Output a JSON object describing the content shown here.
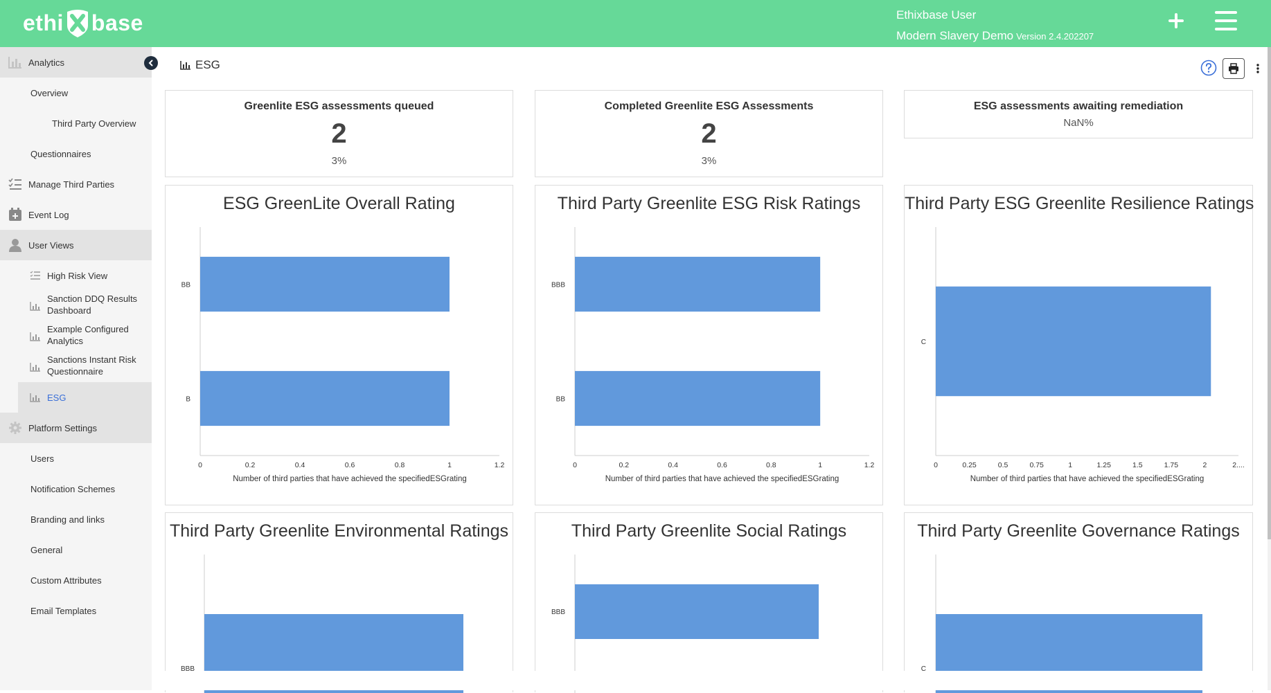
{
  "header": {
    "logo_left": "ethi",
    "logo_right": "base",
    "user_name": "Ethixbase User",
    "org_name": "Modern Slavery Demo",
    "version": "Version 2.4.202207",
    "plus_icon": "plus-icon",
    "menu_icon": "hamburger-menu-icon"
  },
  "sidebar": {
    "analytics": "Analytics",
    "overview": "Overview",
    "third_party_overview": "Third Party Overview",
    "questionnaires": "Questionnaires",
    "manage_third_parties": "Manage Third Parties",
    "event_log": "Event Log",
    "user_views": "User Views",
    "high_risk_view": "High Risk View",
    "sanction_ddq_1": "Sanction DDQ Results",
    "sanction_ddq_2": "Dashboard",
    "example_configured_1": "Example Configured",
    "example_configured_2": "Analytics",
    "sanctions_instant_1": "Sanctions Instant Risk",
    "sanctions_instant_2": "Questionnaire",
    "esg": "ESG",
    "platform_settings": "Platform Settings",
    "users": "Users",
    "notification_schemes": "Notification Schemes",
    "branding_and_links": "Branding and links",
    "general": "General",
    "custom_attributes": "Custom Attributes",
    "email_templates": "Email Templates"
  },
  "main": {
    "title": "ESG"
  },
  "kpis": [
    {
      "title": "Greenlite ESG assessments queued",
      "value": "2",
      "pct": "3%"
    },
    {
      "title": "Completed Greenlite ESG Assessments",
      "value": "2",
      "pct": "3%"
    },
    {
      "title": "ESG assessments awaiting remediation",
      "pct": "NaN%"
    }
  ],
  "colors": {
    "header_green": "#66d998",
    "bar_blue": "#6199dc",
    "esg_active_link": "#3a6fd8"
  },
  "chart_data": [
    {
      "type": "bar",
      "orientation": "horizontal",
      "title": "ESG GreenLite Overall Rating",
      "categories": [
        "BB",
        "B"
      ],
      "values": [
        1,
        1
      ],
      "xlim": [
        0,
        1.2
      ],
      "xticks": [
        "0",
        "0.2",
        "0.4",
        "0.6",
        "0.8",
        "1",
        "1.2"
      ],
      "xlabel": "Number of third parties that have achieved the specifiedESGrating",
      "grid": false
    },
    {
      "type": "bar",
      "orientation": "horizontal",
      "title": "Third Party Greenlite ESG Risk Ratings",
      "categories": [
        "BBB",
        "BB"
      ],
      "values": [
        1,
        1
      ],
      "xlim": [
        0,
        1.2
      ],
      "xticks": [
        "0",
        "0.2",
        "0.4",
        "0.6",
        "0.8",
        "1",
        "1.2"
      ],
      "xlabel": "Number of third parties that have achieved the specifiedESGrating",
      "grid": false
    },
    {
      "type": "bar",
      "orientation": "horizontal",
      "title": "Third Party ESG Greenlite Resilience Ratings",
      "categories": [
        "C"
      ],
      "values": [
        2
      ],
      "xlim": [
        0,
        2.2
      ],
      "xticks": [
        "0",
        "0.25",
        "0.5",
        "0.75",
        "1",
        "1.25",
        "1.5",
        "1.75",
        "2",
        "2...."
      ],
      "xlabel": "Number of third parties that have achieved the specifiedESGrating",
      "grid": false
    },
    {
      "type": "bar",
      "orientation": "horizontal",
      "title": "Third Party Greenlite Environmental Ratings",
      "categories": [
        "BBB"
      ],
      "grid": false
    },
    {
      "type": "bar",
      "orientation": "horizontal",
      "title": "Third Party Greenlite Social Ratings",
      "categories": [
        "BBB"
      ],
      "grid": false
    },
    {
      "type": "bar",
      "orientation": "horizontal",
      "title": "Third Party Greenlite Governance Ratings",
      "categories": [
        "C"
      ],
      "grid": false
    }
  ]
}
